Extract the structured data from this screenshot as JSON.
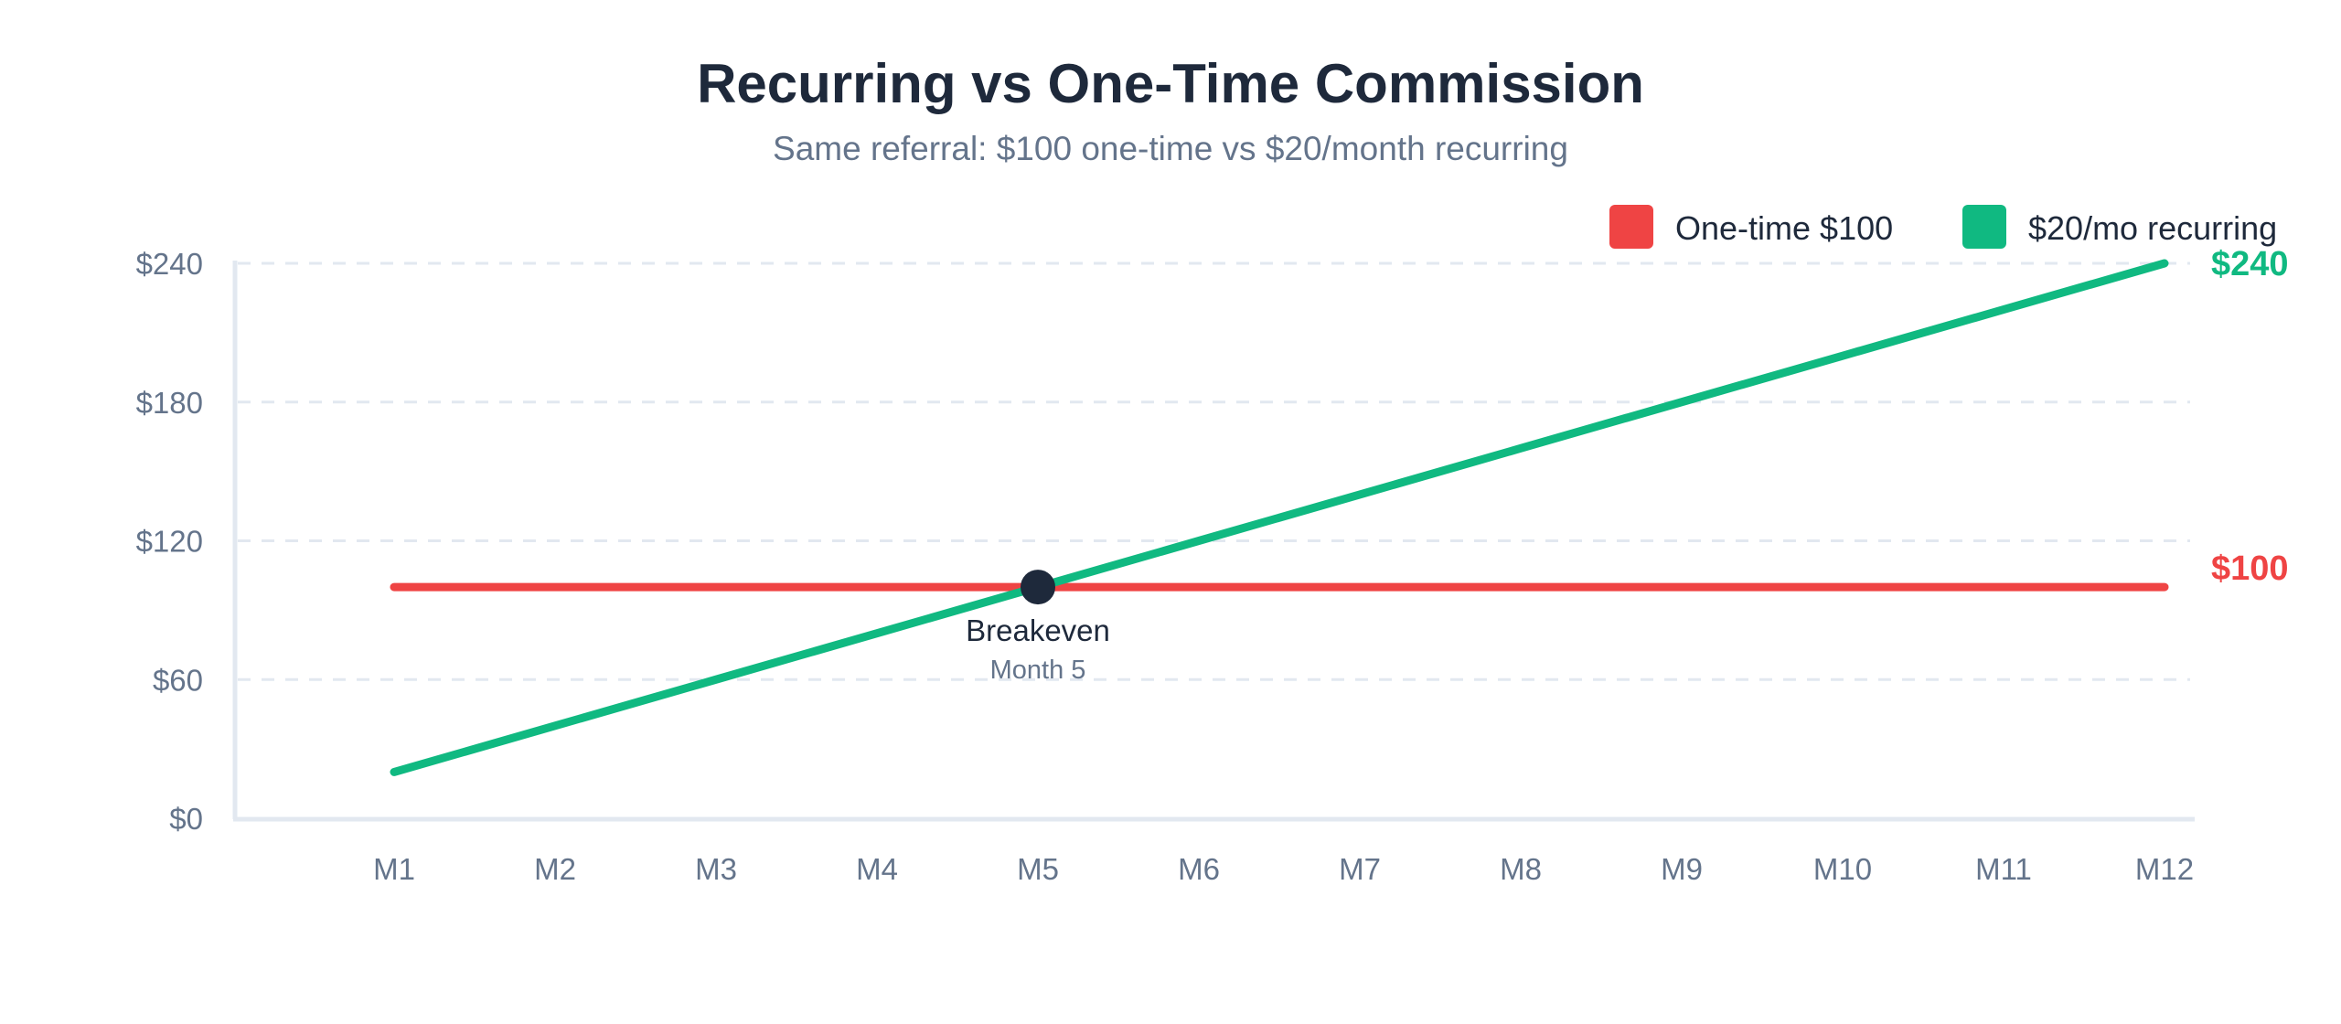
{
  "chart_data": {
    "type": "line",
    "title": "Recurring vs One-Time Commission",
    "subtitle": "Same referral: $100 one-time vs $20/month recurring",
    "categories": [
      "M1",
      "M2",
      "M3",
      "M4",
      "M5",
      "M6",
      "M7",
      "M8",
      "M9",
      "M10",
      "M11",
      "M12"
    ],
    "series": [
      {
        "name": "One-time $100",
        "color": "#ef4444",
        "values": [
          100,
          100,
          100,
          100,
          100,
          100,
          100,
          100,
          100,
          100,
          100,
          100
        ],
        "end_label": "$100"
      },
      {
        "name": "$20/mo recurring",
        "color": "#10b981",
        "values": [
          20,
          40,
          60,
          80,
          100,
          120,
          140,
          160,
          180,
          200,
          220,
          240
        ],
        "end_label": "$240"
      }
    ],
    "ylim": [
      0,
      240
    ],
    "yticks": [
      0,
      60,
      120,
      180,
      240
    ],
    "ytick_labels": [
      "$0",
      "$60",
      "$120",
      "$180",
      "$240"
    ],
    "grid": true,
    "legend_position": "top-right",
    "annotation": {
      "label": "Breakeven",
      "sublabel": "Month 5",
      "category_index": 4,
      "value": 100,
      "color": "#1e293b"
    },
    "xlabel": "",
    "ylabel": ""
  }
}
